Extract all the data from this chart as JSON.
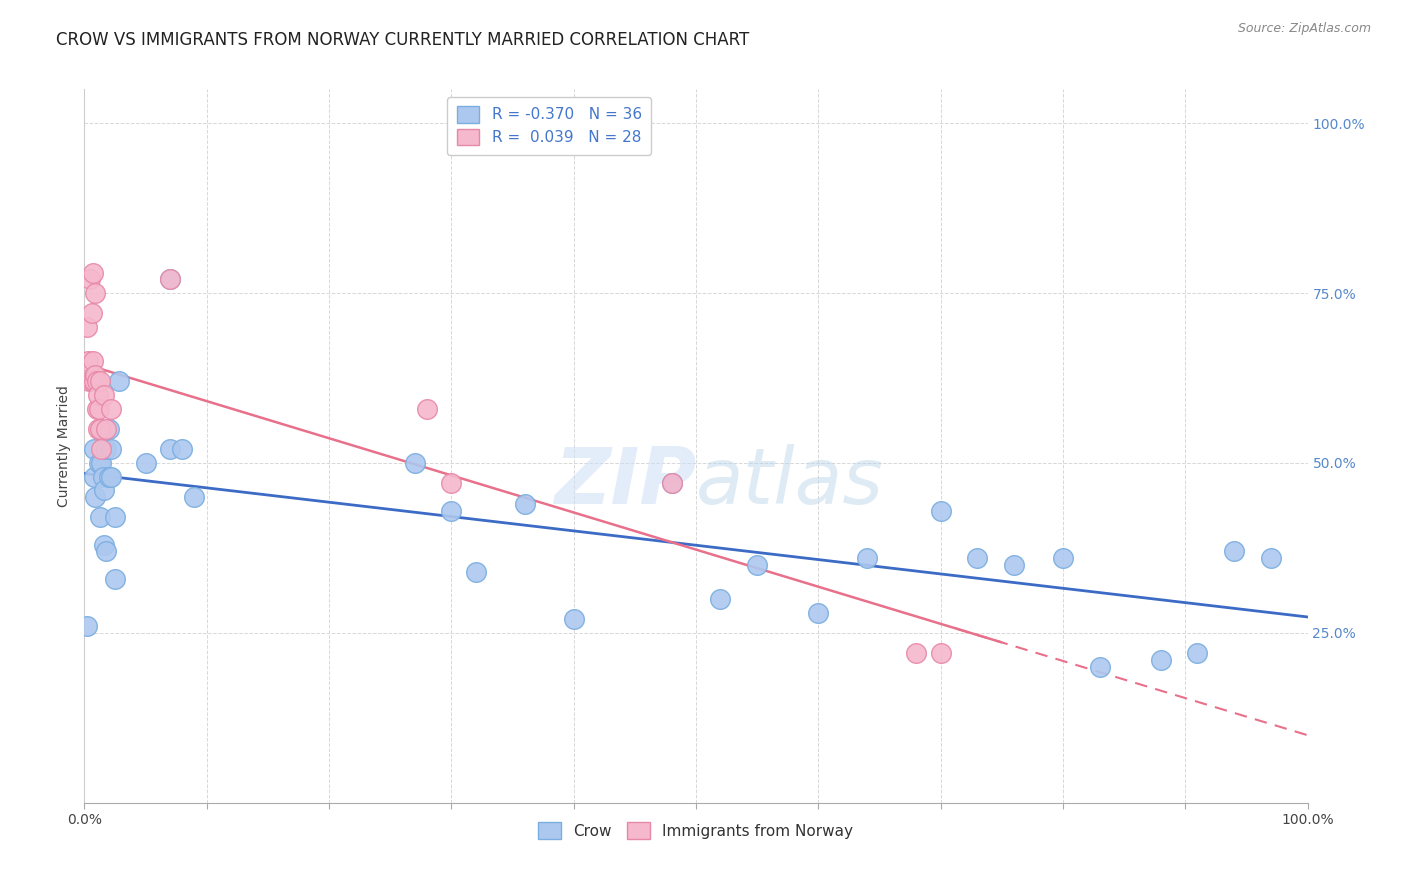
{
  "title": "CROW VS IMMIGRANTS FROM NORWAY CURRENTLY MARRIED CORRELATION CHART",
  "source": "Source: ZipAtlas.com",
  "ylabel": "Currently Married",
  "watermark": "ZIPat las",
  "watermark_zip": "ZIP",
  "watermark_atlas": "atlas",
  "legend_crow_R": "-0.370",
  "legend_crow_N": "36",
  "legend_norway_R": "0.039",
  "legend_norway_N": "28",
  "crow_color": "#adc8ef",
  "crow_edge_color": "#7aaee0",
  "norway_color": "#f5b8cc",
  "norway_edge_color": "#e888a8",
  "crow_line_color": "#3b6bc4",
  "norway_line_color": "#e8708a",
  "crow_x": [
    0.002,
    0.008,
    0.008,
    0.009,
    0.012,
    0.013,
    0.013,
    0.014,
    0.015,
    0.016,
    0.016,
    0.018,
    0.018,
    0.02,
    0.02,
    0.022,
    0.022,
    0.025,
    0.025,
    0.028,
    0.05,
    0.07,
    0.07,
    0.08,
    0.09,
    0.27,
    0.3,
    0.32,
    0.36,
    0.4,
    0.48,
    0.52,
    0.55,
    0.6,
    0.64,
    0.7,
    0.73,
    0.76,
    0.8,
    0.83,
    0.88,
    0.91,
    0.94,
    0.97
  ],
  "crow_y": [
    0.26,
    0.48,
    0.52,
    0.45,
    0.5,
    0.55,
    0.42,
    0.5,
    0.48,
    0.46,
    0.38,
    0.37,
    0.52,
    0.48,
    0.55,
    0.52,
    0.48,
    0.33,
    0.42,
    0.62,
    0.5,
    0.52,
    0.77,
    0.52,
    0.45,
    0.5,
    0.43,
    0.34,
    0.44,
    0.27,
    0.47,
    0.3,
    0.35,
    0.28,
    0.36,
    0.43,
    0.36,
    0.35,
    0.36,
    0.2,
    0.21,
    0.22,
    0.37,
    0.36
  ],
  "norway_x": [
    0.002,
    0.003,
    0.004,
    0.005,
    0.006,
    0.006,
    0.007,
    0.007,
    0.008,
    0.009,
    0.009,
    0.01,
    0.01,
    0.011,
    0.011,
    0.012,
    0.013,
    0.013,
    0.014,
    0.016,
    0.018,
    0.022,
    0.07,
    0.28,
    0.3,
    0.48,
    0.68,
    0.7
  ],
  "norway_y": [
    0.7,
    0.65,
    0.62,
    0.77,
    0.72,
    0.62,
    0.78,
    0.65,
    0.62,
    0.75,
    0.63,
    0.58,
    0.62,
    0.55,
    0.6,
    0.58,
    0.55,
    0.62,
    0.52,
    0.6,
    0.55,
    0.58,
    0.77,
    0.58,
    0.47,
    0.47,
    0.22,
    0.22
  ],
  "xlim": [
    0.0,
    1.0
  ],
  "ylim": [
    0.0,
    1.05
  ],
  "yticks": [
    0.0,
    0.25,
    0.5,
    0.75,
    1.0
  ],
  "ytick_labels_right": [
    "",
    "25.0%",
    "50.0%",
    "75.0%",
    "100.0%"
  ],
  "right_tick_color": "#5588cc",
  "grid_color": "#d8d8d8",
  "background_color": "#ffffff",
  "title_fontsize": 12,
  "axis_label_fontsize": 10,
  "tick_fontsize": 10,
  "legend_fontsize": 11,
  "source_fontsize": 9
}
